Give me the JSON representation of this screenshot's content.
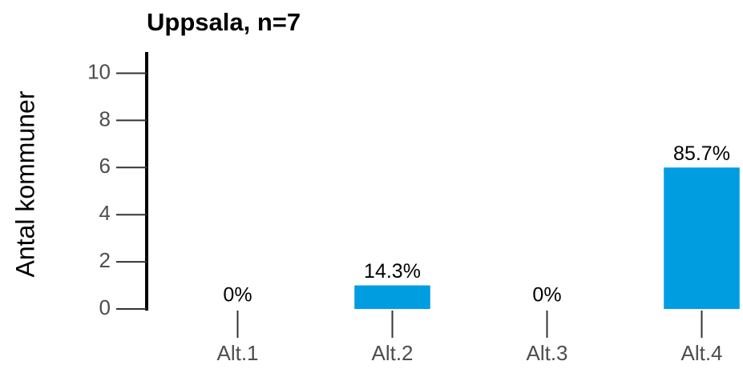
{
  "chart_data": {
    "type": "bar",
    "title": "Uppsala, n=7",
    "ylabel": "Antal kommuner",
    "categories": [
      "Alt.1",
      "Alt.2",
      "Alt.3",
      "Alt.4"
    ],
    "values": [
      0,
      1,
      0,
      6
    ],
    "data_labels": [
      "0%",
      "14.3%",
      "0%",
      "85.7%"
    ],
    "color": "#009ee0",
    "ylim": [
      0,
      10.9
    ],
    "yticks": [
      0,
      2,
      4,
      6,
      8,
      10
    ],
    "grid": false
  }
}
